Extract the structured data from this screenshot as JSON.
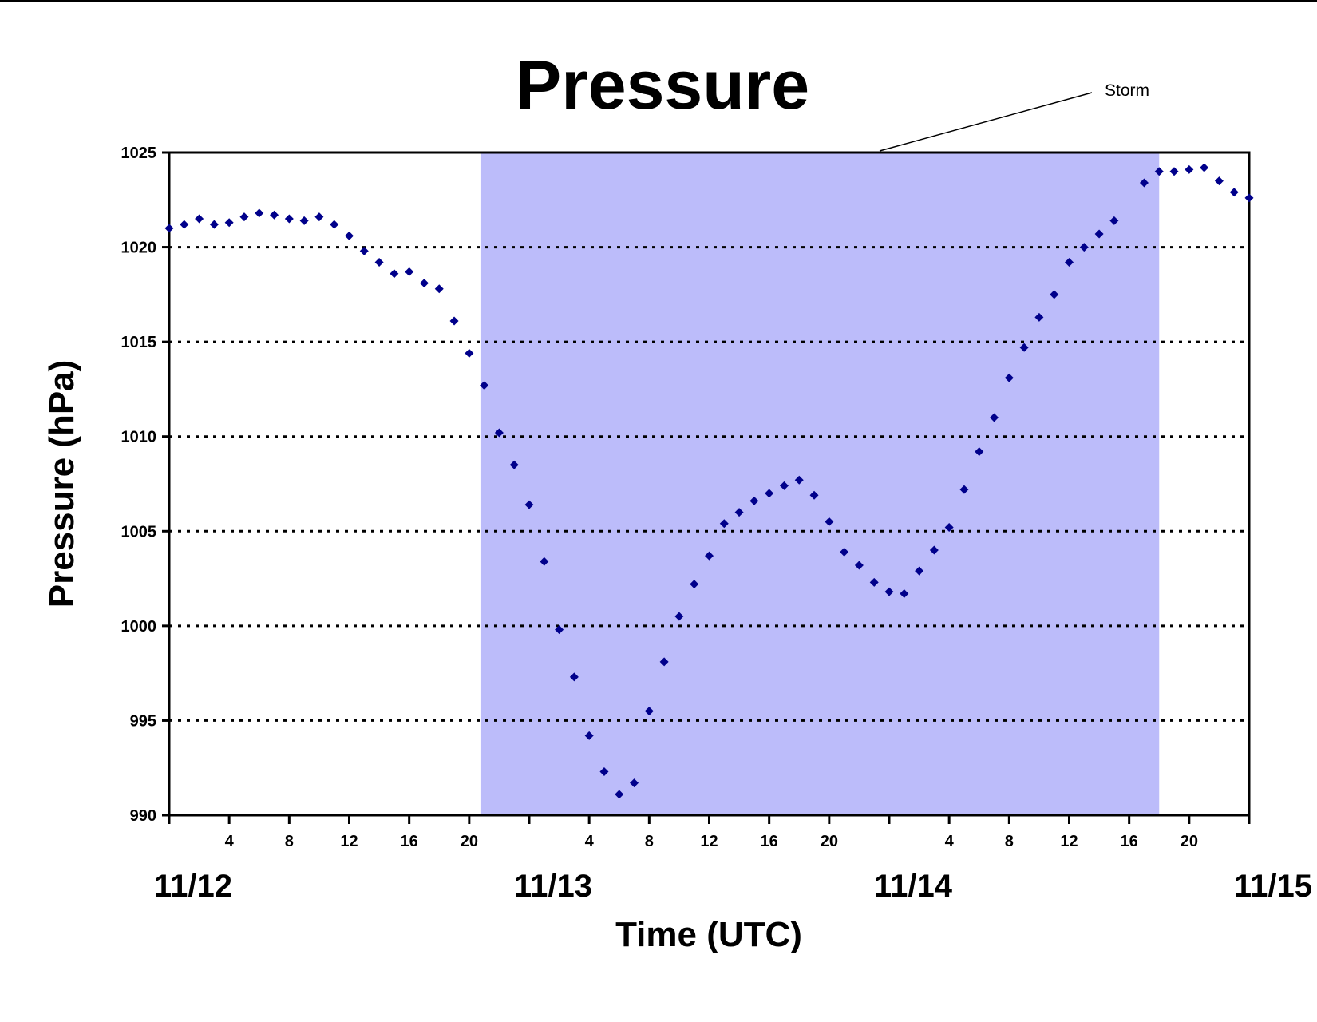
{
  "chart_data": {
    "type": "scatter",
    "title": "Pressure",
    "xlabel": "Time (UTC)",
    "ylabel": "Pressure (hPa)",
    "xlim": [
      "11/12 00:00",
      "11/15 00:00"
    ],
    "ylim": [
      990,
      1025
    ],
    "y_ticks": [
      "990",
      "995",
      "1000",
      "1005",
      "1010",
      "1015",
      "1020",
      "1025"
    ],
    "x_hour_ticks": [
      "4",
      "8",
      "12",
      "16",
      "20",
      "4",
      "8",
      "12",
      "16",
      "20",
      "4",
      "8",
      "12",
      "16",
      "20"
    ],
    "day_labels": [
      "11/12",
      "11/13",
      "11/14",
      "11/15"
    ],
    "grid": "horizontal dotted",
    "legend": "none",
    "marker_color": "#00008b",
    "shade_color": "#bcbcfa",
    "storm_period": {
      "label": "Storm",
      "start": "11/12 20:45",
      "end": "11/14 18:00"
    },
    "series": [
      {
        "x": [
          "11/12 00:00",
          "11/12 01:00",
          "11/12 02:00",
          "11/12 03:00",
          "11/12 04:00",
          "11/12 05:00",
          "11/12 06:00",
          "11/12 07:00",
          "11/12 08:00",
          "11/12 09:00",
          "11/12 10:00",
          "11/12 11:00",
          "11/12 12:00",
          "11/12 13:00",
          "11/12 14:00",
          "11/12 15:00",
          "11/12 16:00",
          "11/12 17:00",
          "11/12 18:00",
          "11/12 19:00",
          "11/12 20:00",
          "11/12 21:00",
          "11/12 22:00",
          "11/12 23:00",
          "11/13 00:00",
          "11/13 01:00",
          "11/13 02:00",
          "11/13 03:00",
          "11/13 04:00",
          "11/13 05:00",
          "11/13 06:00",
          "11/13 07:00",
          "11/13 08:00",
          "11/13 09:00",
          "11/13 10:00",
          "11/13 11:00",
          "11/13 12:00",
          "11/13 13:00",
          "11/13 14:00",
          "11/13 15:00",
          "11/13 16:00",
          "11/13 17:00",
          "11/13 18:00",
          "11/13 19:00",
          "11/13 20:00",
          "11/13 21:00",
          "11/13 22:00",
          "11/13 23:00",
          "11/14 00:00",
          "11/14 01:00",
          "11/14 02:00",
          "11/14 03:00",
          "11/14 04:00",
          "11/14 05:00",
          "11/14 06:00",
          "11/14 07:00",
          "11/14 08:00",
          "11/14 09:00",
          "11/14 10:00",
          "11/14 11:00",
          "11/14 12:00",
          "11/14 13:00",
          "11/14 14:00",
          "11/14 15:00",
          "11/14 17:00",
          "11/14 18:00",
          "11/14 19:00",
          "11/14 20:00",
          "11/14 21:00",
          "11/14 22:00",
          "11/14 23:00",
          "11/15 00:00"
        ],
        "y": [
          1021.0,
          1021.2,
          1021.5,
          1021.2,
          1021.3,
          1021.6,
          1021.8,
          1021.7,
          1021.5,
          1021.4,
          1021.6,
          1021.2,
          1020.6,
          1019.8,
          1019.2,
          1018.6,
          1018.7,
          1018.1,
          1017.8,
          1016.1,
          1014.4,
          1012.7,
          1010.2,
          1008.5,
          1006.4,
          1003.4,
          999.8,
          997.3,
          994.2,
          992.3,
          991.1,
          991.7,
          995.5,
          998.1,
          1000.5,
          1002.2,
          1003.7,
          1005.4,
          1006.0,
          1006.6,
          1007.0,
          1007.4,
          1007.7,
          1006.9,
          1005.5,
          1003.9,
          1003.2,
          1002.3,
          1001.8,
          1001.7,
          1002.9,
          1004.0,
          1005.2,
          1007.2,
          1009.2,
          1011.0,
          1013.1,
          1014.7,
          1016.3,
          1017.5,
          1019.2,
          1020.0,
          1020.7,
          1021.4,
          1023.4,
          1024.0,
          1024.0,
          1024.1,
          1024.2,
          1023.5,
          1022.9,
          1022.6
        ]
      }
    ]
  }
}
